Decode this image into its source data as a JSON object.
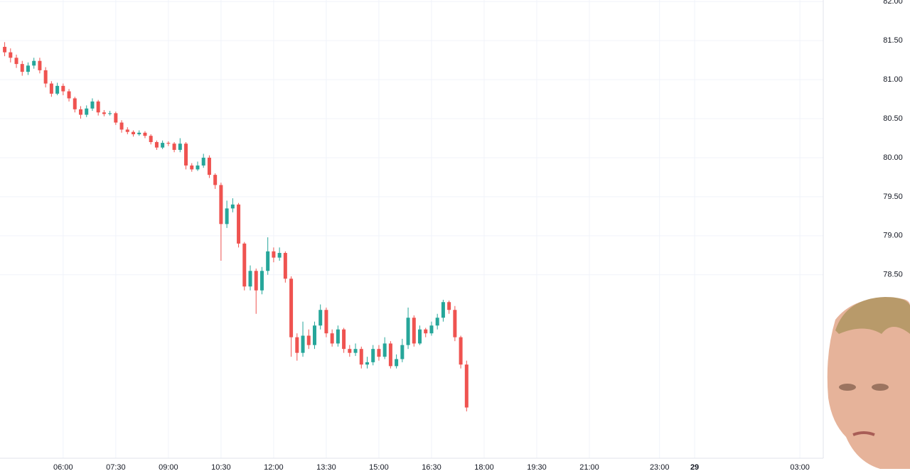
{
  "chart_data": {
    "type": "candlestick",
    "x": [
      260,
      270,
      280,
      290,
      300,
      310,
      320,
      330,
      340,
      350,
      360,
      370,
      380,
      390,
      400,
      410,
      420,
      430,
      440,
      450,
      460,
      470,
      480,
      490,
      500,
      510,
      520,
      530,
      540,
      550,
      560,
      570,
      580,
      590,
      600,
      610,
      620,
      630,
      640,
      650,
      660,
      670,
      680,
      690,
      700,
      710,
      720,
      730,
      740,
      750,
      760,
      770,
      780,
      790,
      800,
      810,
      820,
      830,
      840,
      850,
      860,
      870,
      880,
      890,
      900,
      910,
      920,
      930,
      940,
      950,
      960,
      970,
      980,
      990,
      1000,
      1010,
      1020,
      1030,
      1040,
      1050
    ],
    "open": [
      81.42,
      81.35,
      81.28,
      81.2,
      81.1,
      81.18,
      81.24,
      81.12,
      80.95,
      80.82,
      80.92,
      80.85,
      80.76,
      80.62,
      80.55,
      80.63,
      80.72,
      80.58,
      80.56,
      80.57,
      80.45,
      80.36,
      80.33,
      80.3,
      80.32,
      80.28,
      80.2,
      80.13,
      80.19,
      80.18,
      80.1,
      80.18,
      79.9,
      79.85,
      79.9,
      80.0,
      79.78,
      79.65,
      79.15,
      79.35,
      79.4,
      78.9,
      78.35,
      78.55,
      78.3,
      78.55,
      78.8,
      78.72,
      78.78,
      78.45,
      77.7,
      77.5,
      77.72,
      77.6,
      77.85,
      78.05,
      77.75,
      77.62,
      77.8,
      77.55,
      77.5,
      77.55,
      77.35,
      77.38,
      77.55,
      77.45,
      77.62,
      77.33,
      77.42,
      77.6,
      77.95,
      77.62,
      77.8,
      77.75,
      77.85,
      77.95,
      78.15,
      78.05,
      77.7,
      77.35
    ],
    "high": [
      81.48,
      81.4,
      81.32,
      81.24,
      81.22,
      81.28,
      81.28,
      81.16,
      80.98,
      80.96,
      80.95,
      80.88,
      80.78,
      80.66,
      80.67,
      80.76,
      80.74,
      80.61,
      80.6,
      80.59,
      80.48,
      80.39,
      80.35,
      80.35,
      80.34,
      80.3,
      80.22,
      80.22,
      80.21,
      80.2,
      80.25,
      80.2,
      79.93,
      79.95,
      80.05,
      80.03,
      79.8,
      79.68,
      79.45,
      79.48,
      79.42,
      78.92,
      78.62,
      78.58,
      78.6,
      78.98,
      78.85,
      78.85,
      78.8,
      78.48,
      77.75,
      77.9,
      77.8,
      77.9,
      78.12,
      78.08,
      77.8,
      77.85,
      77.82,
      77.6,
      77.62,
      77.58,
      77.45,
      77.6,
      77.6,
      77.7,
      77.65,
      77.48,
      77.68,
      78.08,
      77.98,
      77.85,
      77.82,
      77.9,
      78.0,
      78.18,
      78.17,
      78.1,
      77.72,
      77.4
    ],
    "low": [
      81.3,
      81.22,
      81.15,
      81.05,
      81.06,
      81.14,
      81.08,
      80.9,
      80.78,
      80.8,
      80.8,
      80.72,
      80.58,
      80.5,
      80.52,
      80.6,
      80.54,
      80.53,
      80.54,
      80.42,
      80.32,
      80.3,
      80.27,
      80.28,
      80.25,
      80.17,
      80.1,
      80.11,
      80.15,
      80.07,
      80.07,
      79.85,
      79.82,
      79.83,
      79.87,
      79.74,
      79.6,
      78.68,
      79.1,
      79.3,
      78.85,
      78.3,
      78.3,
      78.0,
      78.25,
      78.5,
      78.66,
      78.68,
      78.4,
      77.45,
      77.4,
      77.45,
      77.55,
      77.55,
      77.8,
      77.7,
      77.58,
      77.58,
      77.5,
      77.45,
      77.46,
      77.3,
      77.3,
      77.34,
      77.4,
      77.42,
      77.3,
      77.3,
      77.38,
      77.55,
      77.58,
      77.6,
      77.7,
      77.72,
      77.8,
      77.9,
      78.0,
      77.65,
      77.3,
      76.75
    ],
    "close": [
      81.35,
      81.28,
      81.2,
      81.1,
      81.18,
      81.24,
      81.12,
      80.95,
      80.82,
      80.92,
      80.85,
      80.76,
      80.62,
      80.55,
      80.63,
      80.72,
      80.58,
      80.56,
      80.57,
      80.45,
      80.36,
      80.33,
      80.3,
      80.32,
      80.28,
      80.2,
      80.13,
      80.19,
      80.18,
      80.1,
      80.18,
      79.9,
      79.85,
      79.9,
      80.0,
      79.78,
      79.65,
      79.15,
      79.35,
      79.4,
      78.9,
      78.35,
      78.55,
      78.3,
      78.55,
      78.8,
      78.72,
      78.78,
      78.45,
      77.7,
      77.5,
      77.72,
      77.6,
      77.85,
      78.05,
      77.75,
      77.62,
      77.8,
      77.55,
      77.5,
      77.55,
      77.35,
      77.38,
      77.55,
      77.45,
      77.62,
      77.33,
      77.42,
      77.6,
      77.95,
      77.62,
      77.8,
      77.75,
      77.85,
      77.95,
      78.15,
      78.05,
      77.7,
      77.35,
      76.8
    ],
    "up_color": "#26a69a",
    "down_color": "#ef5350",
    "xlim": [
      252,
      1660
    ],
    "xticks": [
      {
        "value": 360,
        "label": "06:00"
      },
      {
        "value": 450,
        "label": "07:30"
      },
      {
        "value": 540,
        "label": "09:00"
      },
      {
        "value": 630,
        "label": "10:30"
      },
      {
        "value": 720,
        "label": "12:00"
      },
      {
        "value": 810,
        "label": "13:30"
      },
      {
        "value": 900,
        "label": "15:00"
      },
      {
        "value": 990,
        "label": "16:30"
      },
      {
        "value": 1080,
        "label": "18:00"
      },
      {
        "value": 1170,
        "label": "19:30"
      },
      {
        "value": 1260,
        "label": "21:00"
      },
      {
        "value": 1380,
        "label": "23:00"
      },
      {
        "value": 1440,
        "label": "29"
      },
      {
        "value": 1620,
        "label": "03:00"
      }
    ],
    "ylim": [
      76.15,
      82.02
    ],
    "yticks": [
      {
        "value": 82,
        "label": "82.00"
      },
      {
        "value": 81.5,
        "label": "81.50"
      },
      {
        "value": 81,
        "label": "81.00"
      },
      {
        "value": 80.5,
        "label": "80.50"
      },
      {
        "value": 80,
        "label": "80.00"
      },
      {
        "value": 79.5,
        "label": "79.50"
      },
      {
        "value": 79,
        "label": "79.00"
      },
      {
        "value": 78.5,
        "label": "78.50"
      }
    ],
    "grid": true
  }
}
